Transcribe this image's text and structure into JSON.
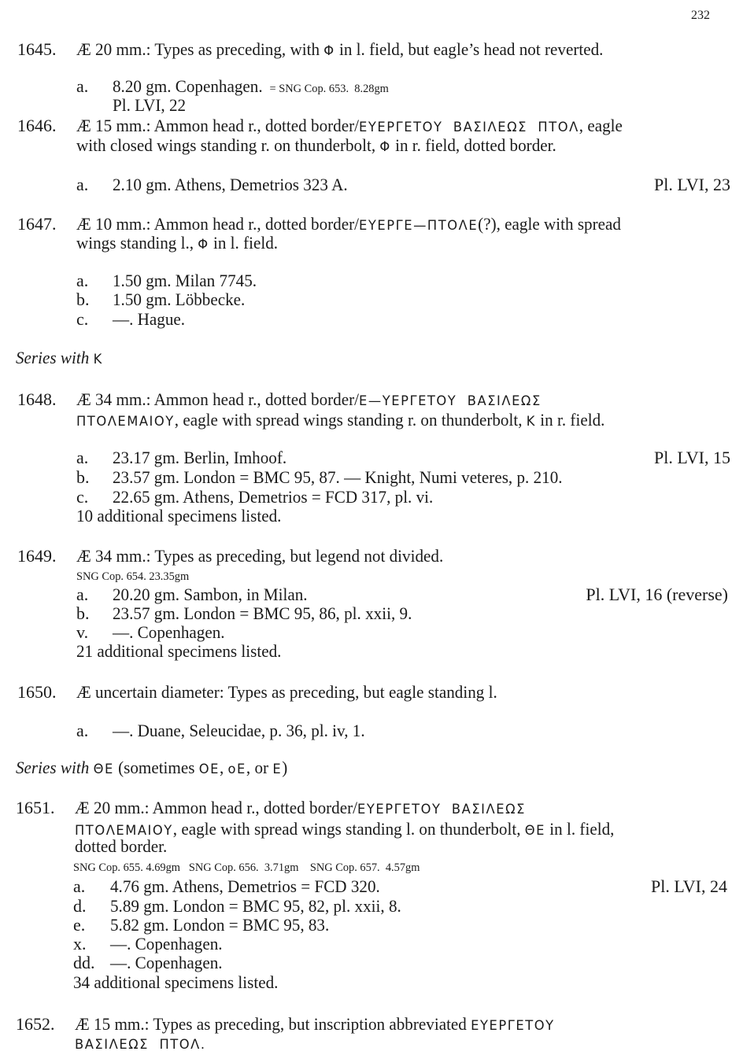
{
  "page_number": "232",
  "lines": [
    {
      "type": "entry",
      "num": "1645.",
      "segments": [
        {
          "t": "Æ 20 mm.: Types as preceding, with "
        },
        {
          "t": "Φ",
          "k": "greek"
        },
        {
          "t": " in l. field, but eagle’s head not reverted."
        }
      ]
    },
    {
      "type": "item",
      "letter": "a.",
      "segments": [
        {
          "t": "8.20 gm. Copenhagen. "
        },
        {
          "t": " = SNG Cop. 653.  8.28gm",
          "k": "small"
        }
      ]
    },
    {
      "type": "item-cont",
      "segments": [
        {
          "t": "Pl. LVI, 22"
        }
      ]
    },
    {
      "type": "entry",
      "num": "1646.",
      "segments": [
        {
          "t": "Æ 15 mm.: Ammon head r., dotted border/"
        },
        {
          "t": "ΕΥΕΡΓΕΤΟΥ  ΒΑΣΙΛΕΩΣ  ΠΤΟΛ",
          "k": "greek"
        },
        {
          "t": ", eagle"
        }
      ]
    },
    {
      "type": "entry-cont",
      "segments": [
        {
          "t": "with closed wings standing r. on thunderbolt, "
        },
        {
          "t": "Φ",
          "k": "greek"
        },
        {
          "t": " in r. field, dotted border."
        }
      ]
    },
    {
      "type": "item",
      "letter": "a.",
      "segments": [
        {
          "t": "2.10 gm. Athens, Demetrios 323 A."
        }
      ],
      "right": "Pl. LVI, 23"
    },
    {
      "type": "entry",
      "num": "1647.",
      "segments": [
        {
          "t": "Æ 10 mm.: Ammon head r., dotted border/"
        },
        {
          "t": "ΕΥΕΡΓΕ—ΠΤΟΛΕ",
          "k": "greek"
        },
        {
          "t": "(?), eagle with spread"
        }
      ]
    },
    {
      "type": "entry-cont",
      "segments": [
        {
          "t": "wings standing l., "
        },
        {
          "t": "Φ",
          "k": "greek"
        },
        {
          "t": " in l. field."
        }
      ]
    },
    {
      "type": "item",
      "letter": "a.",
      "segments": [
        {
          "t": "1.50 gm. Milan 7745."
        }
      ]
    },
    {
      "type": "item",
      "letter": "b.",
      "segments": [
        {
          "t": "1.50 gm. Löbbecke."
        }
      ]
    },
    {
      "type": "item",
      "letter": "c.",
      "segments": [
        {
          "t": "—. Hague."
        }
      ]
    },
    {
      "type": "heading",
      "segments": [
        {
          "t": "Series with ",
          "k": "italic"
        },
        {
          "t": "Κ",
          "k": "greek"
        }
      ]
    },
    {
      "type": "entry",
      "num": "1648.",
      "segments": [
        {
          "t": "Æ 34 mm.: Ammon head r., dotted border/"
        },
        {
          "t": "Ε—ΥΕΡΓΕΤΟΥ  ΒΑΣΙΛΕΩΣ",
          "k": "greek"
        }
      ]
    },
    {
      "type": "entry-cont",
      "segments": [
        {
          "t": "ΠΤΟΛΕΜΑΙΟΥ",
          "k": "greek"
        },
        {
          "t": ", eagle with spread wings standing r. on thunderbolt, "
        },
        {
          "t": "Κ",
          "k": "greek"
        },
        {
          "t": " in r. field."
        }
      ]
    },
    {
      "type": "item",
      "letter": "a.",
      "segments": [
        {
          "t": "23.17 gm. Berlin, Imhoof."
        }
      ],
      "right": "Pl. LVI, 15"
    },
    {
      "type": "item",
      "letter": "b.",
      "segments": [
        {
          "t": "23.57 gm. London = BMC 95, 87. — Knight, Numi veteres, p. 210."
        }
      ]
    },
    {
      "type": "item",
      "letter": "c.",
      "segments": [
        {
          "t": "22.65 gm. Athens, Demetrios = FCD 317, pl. vi."
        }
      ]
    },
    {
      "type": "note",
      "segments": [
        {
          "t": "10 additional specimens listed."
        }
      ]
    },
    {
      "type": "entry",
      "num": "1649.",
      "segments": [
        {
          "t": "Æ 34 mm.: Types as preceding, but legend not divided."
        }
      ]
    },
    {
      "type": "note",
      "segments": [
        {
          "t": "SNG Cop. 654. 23.35gm",
          "k": "small"
        }
      ]
    },
    {
      "type": "item",
      "letter": "a.",
      "segments": [
        {
          "t": "20.20 gm. Sambon, in Milan."
        }
      ],
      "right": "Pl. LVI, 16 (reverse)"
    },
    {
      "type": "item",
      "letter": "b.",
      "segments": [
        {
          "t": "23.57 gm. London = BMC 95, 86, pl. xxii, 9."
        }
      ]
    },
    {
      "type": "item",
      "letter": "v.",
      "segments": [
        {
          "t": "—. Copenhagen."
        }
      ]
    },
    {
      "type": "note",
      "segments": [
        {
          "t": "21 additional specimens listed."
        }
      ]
    },
    {
      "type": "entry",
      "num": "1650.",
      "segments": [
        {
          "t": "Æ uncertain diameter: Types as preceding, but eagle standing l."
        }
      ]
    },
    {
      "type": "item",
      "letter": "a.",
      "segments": [
        {
          "t": "—. Duane, Seleucidae, p. 36, pl. iv, 1."
        }
      ]
    },
    {
      "type": "heading",
      "segments": [
        {
          "t": "Series with ",
          "k": "italic"
        },
        {
          "t": "ΘΕ",
          "k": "greek"
        },
        {
          "t": " (sometimes "
        },
        {
          "t": "ΟΕ",
          "k": "greek"
        },
        {
          "t": ", "
        },
        {
          "t": "οΕ",
          "k": "greek"
        },
        {
          "t": ", or "
        },
        {
          "t": "Ε",
          "k": "greek"
        },
        {
          "t": ")"
        }
      ]
    },
    {
      "type": "entry",
      "num": "1651.",
      "segments": [
        {
          "t": "Æ 20 mm.: Ammon head r., dotted border/"
        },
        {
          "t": "ΕΥΕΡΓΕΤΟΥ  ΒΑΣΙΛΕΩΣ",
          "k": "greek"
        }
      ]
    },
    {
      "type": "entry-cont",
      "segments": [
        {
          "t": "ΠΤΟΛΕΜΑΙΟΥ",
          "k": "greek"
        },
        {
          "t": ", eagle with spread wings standing l. on thunderbolt, "
        },
        {
          "t": "ΘΕ",
          "k": "greek"
        },
        {
          "t": " in l. field,"
        }
      ]
    },
    {
      "type": "entry-cont",
      "segments": [
        {
          "t": "dotted border."
        }
      ]
    },
    {
      "type": "note",
      "segments": [
        {
          "t": "SNG Cop. 655. 4.69gm   SNG Cop. 656.  3.71gm    SNG Cop. 657.  4.57gm",
          "k": "small"
        }
      ]
    },
    {
      "type": "item",
      "letter": "a.",
      "segments": [
        {
          "t": "4.76 gm. Athens, Demetrios = FCD 320."
        }
      ],
      "right": "Pl. LVI, 24"
    },
    {
      "type": "item",
      "letter": "d.",
      "segments": [
        {
          "t": "5.89 gm. London = BMC 95, 82, pl. xxii, 8."
        }
      ]
    },
    {
      "type": "item",
      "letter": "e.",
      "segments": [
        {
          "t": "5.82 gm. London = BMC 95, 83."
        }
      ]
    },
    {
      "type": "item",
      "letter": "x.",
      "segments": [
        {
          "t": "—. Copenhagen."
        }
      ]
    },
    {
      "type": "item",
      "letter": "dd.",
      "segments": [
        {
          "t": "—. Copenhagen."
        }
      ]
    },
    {
      "type": "note",
      "segments": [
        {
          "t": "34 additional specimens listed."
        }
      ]
    },
    {
      "type": "entry",
      "num": "1652.",
      "segments": [
        {
          "t": "Æ 15 mm.: Types as preceding, but inscription abbreviated "
        },
        {
          "t": "ΕΥΕΡΓΕΤΟΥ",
          "k": "greek"
        }
      ]
    },
    {
      "type": "entry-cont",
      "segments": [
        {
          "t": "ΒΑΣΙΛΕΩΣ  ΠΤΟΛ.",
          "k": "greek"
        }
      ]
    }
  ]
}
